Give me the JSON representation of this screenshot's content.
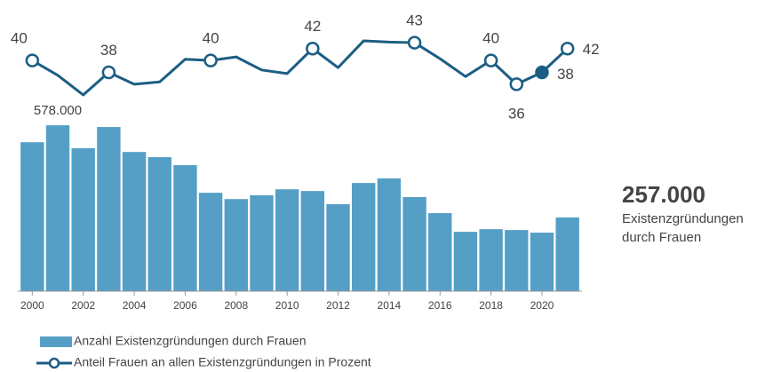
{
  "chart_data": {
    "type": "bar_line",
    "x": [
      2000,
      2001,
      2002,
      2003,
      2004,
      2005,
      2006,
      2007,
      2008,
      2009,
      2010,
      2011,
      2012,
      2013,
      2014,
      2015,
      2016,
      2017,
      2018,
      2019,
      2020,
      2021
    ],
    "xlim": [
      1999.5,
      2021.5
    ],
    "xticks": [
      2000,
      2002,
      2004,
      2006,
      2008,
      2010,
      2012,
      2014,
      2016,
      2018,
      2020
    ],
    "ylim": [
      0,
      600000
    ],
    "y2lim": [
      30,
      46
    ],
    "series": [
      {
        "name": "Anzahl Existenzgründungen durch Frauen",
        "type": "bar",
        "color": "#559fc6",
        "values": [
          519000,
          578000,
          498000,
          572000,
          485000,
          467000,
          439000,
          343000,
          321000,
          334000,
          355000,
          349000,
          303000,
          377000,
          393000,
          328000,
          272000,
          207000,
          216000,
          213000,
          204000,
          257000
        ],
        "value_labels": [
          null,
          "578.000",
          null,
          null,
          null,
          null,
          null,
          null,
          null,
          null,
          null,
          null,
          null,
          null,
          null,
          null,
          null,
          null,
          null,
          null,
          null,
          null
        ]
      },
      {
        "name": "Anteil Frauen an allen Existenzgründungen in Prozent",
        "type": "line",
        "axis": "y2",
        "color": "#1b5e84",
        "values": [
          40,
          37.5,
          34.2,
          38,
          36,
          36.4,
          40.2,
          40,
          40.6,
          38.4,
          37.8,
          42,
          38.8,
          43.3,
          43.1,
          43,
          40.3,
          37.3,
          40,
          36,
          38,
          42
        ],
        "value_labels": [
          "40",
          null,
          null,
          "38",
          null,
          null,
          null,
          "40",
          null,
          null,
          null,
          "42",
          null,
          null,
          null,
          "43",
          null,
          null,
          "40",
          "36",
          "38",
          "42"
        ]
      }
    ],
    "highlight_value": "257.000",
    "highlight_text": [
      "Existenzgründungen",
      "durch Frauen"
    ]
  }
}
